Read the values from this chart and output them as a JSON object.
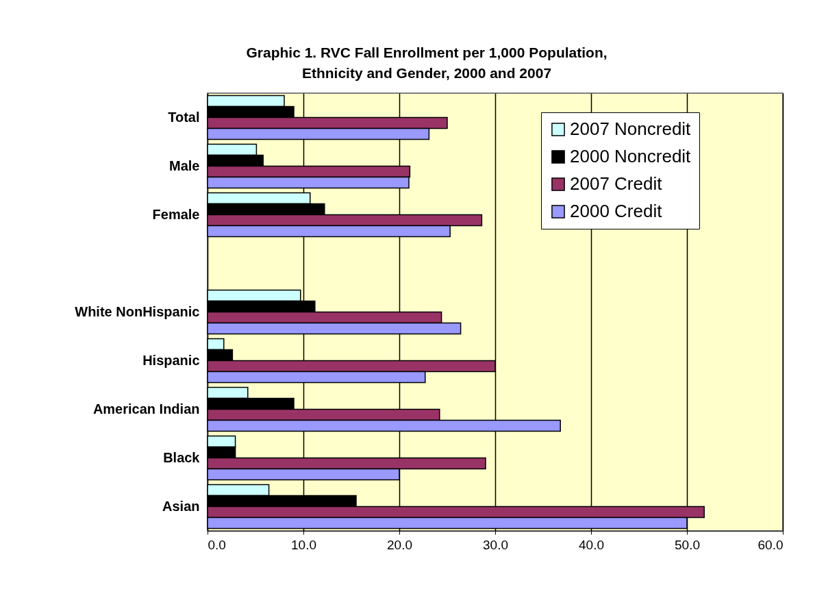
{
  "chart_data": {
    "type": "bar",
    "orientation": "horizontal",
    "title": [
      "Graphic 1.  RVC Fall Enrollment per 1,000 Population,",
      "Ethnicity and Gender, 2000 and 2007"
    ],
    "categories": [
      "Total",
      "Male",
      "Female",
      null,
      "White NonHispanic",
      "Hispanic",
      "American Indian",
      "Black",
      "Asian"
    ],
    "series": [
      {
        "name": "2007 Noncredit",
        "color": "#ccffff",
        "values": [
          8.0,
          5.1,
          10.7,
          null,
          9.7,
          1.7,
          4.2,
          2.9,
          6.4
        ]
      },
      {
        "name": "2000 Noncredit",
        "color": "#000000",
        "values": [
          9.0,
          5.8,
          12.2,
          null,
          11.2,
          2.6,
          9.0,
          2.9,
          15.5
        ]
      },
      {
        "name": "2007 Credit",
        "color": "#993366",
        "values": [
          25.0,
          21.1,
          28.6,
          null,
          24.4,
          30.0,
          24.2,
          29.0,
          51.8
        ]
      },
      {
        "name": "2000 Credit",
        "color": "#9999ff",
        "values": [
          23.1,
          21.0,
          25.3,
          null,
          26.4,
          22.7,
          36.8,
          20.0,
          50.0
        ]
      }
    ],
    "xlim": [
      0,
      60
    ],
    "xticks": [
      {
        "value": 0,
        "label": "0.0"
      },
      {
        "value": 10,
        "label": "10.0"
      },
      {
        "value": 20,
        "label": "20.0"
      },
      {
        "value": 30,
        "label": "30.0"
      },
      {
        "value": 40,
        "label": "40.0"
      },
      {
        "value": 50,
        "label": "50.0"
      },
      {
        "value": 60,
        "label": "60.0"
      }
    ],
    "grid": "x",
    "legend": "top right"
  }
}
